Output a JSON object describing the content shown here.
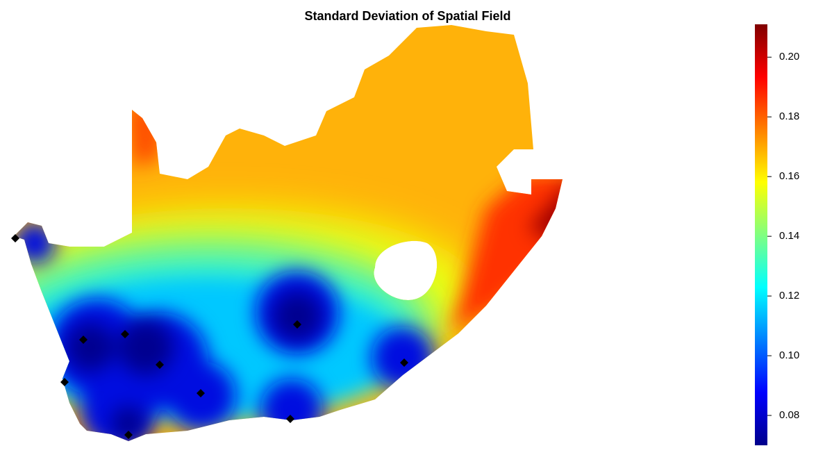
{
  "chart_data": {
    "type": "heatmap-map",
    "title": "Standard Deviation of Spatial Field",
    "colorbar": {
      "ylim": [
        0.07,
        0.211
      ],
      "yticks": [
        {
          "value": 0.08,
          "label": "0.08"
        },
        {
          "value": 0.1,
          "label": "0.10"
        },
        0.12,
        0.14,
        0.16,
        0.18,
        {
          "value": 0.2,
          "label": "0.20"
        }
      ],
      "colormap": [
        "#00008b",
        "#0000ff",
        "#0080ff",
        "#00ffff",
        "#80ff80",
        "#ffff00",
        "#ff8000",
        "#ff0000",
        "#800000"
      ]
    }
  }
}
